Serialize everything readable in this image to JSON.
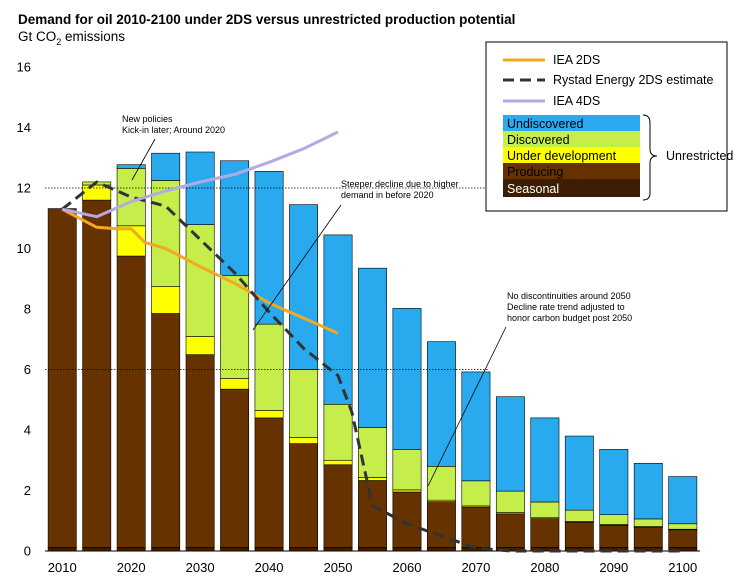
{
  "chart_data": {
    "type": "bar",
    "title": "Demand for oil 2010-2100 under 2DS  versus unrestricted production potential",
    "ylabel_prefix": "Gt CO",
    "ylabel_sub": "2",
    "ylabel_suffix": " emissions",
    "ylim": [
      0,
      16
    ],
    "yticks": [
      "0",
      "2",
      "4",
      "6",
      "8",
      "10",
      "12",
      "14",
      "16"
    ],
    "xlim": [
      2007.5,
      2102.5
    ],
    "xticks": [
      "2010",
      "2020",
      "2030",
      "2040",
      "2050",
      "2060",
      "2070",
      "2080",
      "2090",
      "2100"
    ],
    "grid": false,
    "years": [
      2010,
      2015,
      2020,
      2025,
      2030,
      2035,
      2040,
      2045,
      2050,
      2055,
      2060,
      2065,
      2070,
      2075,
      2080,
      2085,
      2090,
      2095,
      2100
    ],
    "stack_order": [
      "seasonal",
      "producing",
      "under_development",
      "discovered",
      "undiscovered"
    ],
    "stacks": [
      {
        "name": "Seasonal",
        "color": "#3D1E05",
        "values": [
          0.12,
          0.12,
          0.12,
          0.12,
          0.12,
          0.12,
          0.12,
          0.12,
          0.12,
          0.12,
          0.12,
          0.12,
          0.12,
          0.12,
          0.12,
          0.12,
          0.12,
          0.12,
          0.12
        ]
      },
      {
        "name": "Producing",
        "color": "#663300",
        "values": [
          11.2,
          11.48,
          9.63,
          7.73,
          6.37,
          5.23,
          4.28,
          3.43,
          2.73,
          2.21,
          1.83,
          1.51,
          1.33,
          1.11,
          0.95,
          0.83,
          0.73,
          0.66,
          0.58
        ]
      },
      {
        "name": "Under development",
        "color": "#FFFF00",
        "values": [
          0,
          0.5,
          1.0,
          0.9,
          0.6,
          0.35,
          0.25,
          0.2,
          0.15,
          0.1,
          0.07,
          0.05,
          0.04,
          0.04,
          0.03,
          0.03,
          0.03,
          0.03,
          0.02
        ]
      },
      {
        "name": "Discovered",
        "color": "#C6EE4A",
        "values": [
          0,
          0.1,
          1.9,
          3.5,
          3.7,
          3.4,
          2.85,
          2.25,
          1.85,
          1.65,
          1.33,
          1.12,
          0.83,
          0.71,
          0.52,
          0.37,
          0.32,
          0.25,
          0.18
        ]
      },
      {
        "name": "Undiscovered",
        "color": "#29AAEF",
        "values": [
          0,
          0,
          0.12,
          0.9,
          2.4,
          3.8,
          5.05,
          5.45,
          5.6,
          5.27,
          4.67,
          4.12,
          3.6,
          3.12,
          2.78,
          2.45,
          2.16,
          1.84,
          1.56
        ]
      }
    ],
    "lines": [
      {
        "name": "IEA 2DS",
        "color": "#F5A623",
        "dash": "solid",
        "x": [
          2010,
          2015,
          2018,
          2020,
          2022,
          2025,
          2030,
          2035,
          2040,
          2045,
          2050
        ],
        "y": [
          11.3,
          10.7,
          10.65,
          10.65,
          10.2,
          10.0,
          9.4,
          8.85,
          8.2,
          7.7,
          7.2
        ]
      },
      {
        "name": "Rystad Energy 2DS estimate",
        "color": "#333333",
        "dash": "dashed",
        "x": [
          2010,
          2015,
          2020,
          2025,
          2030,
          2035,
          2040,
          2045,
          2050,
          2052,
          2055,
          2060,
          2065,
          2070,
          2075,
          2080,
          2085,
          2090,
          2095,
          2100
        ],
        "y": [
          11.3,
          12.2,
          11.7,
          11.4,
          10.3,
          9.2,
          7.9,
          6.7,
          5.8,
          4.6,
          1.5,
          0.9,
          0.5,
          0.1,
          0.0,
          0.0,
          0.0,
          0.0,
          0.0,
          0.0
        ]
      },
      {
        "name": "IEA 4DS",
        "color": "#B3A9E3",
        "dash": "solid",
        "x": [
          2010,
          2015,
          2020,
          2025,
          2030,
          2035,
          2040,
          2045,
          2050
        ],
        "y": [
          11.3,
          11.05,
          11.55,
          11.9,
          12.2,
          12.45,
          12.85,
          13.3,
          13.85
        ]
      }
    ],
    "ref_lines": [
      12.0,
      6.0
    ],
    "annotations": [
      {
        "line1": "New policies",
        "line2": "Kick-in later; Around 2020"
      },
      {
        "line1": "Steeper decline due to higher",
        "line2": "demand in before 2020"
      },
      {
        "line1": "No discontinuities around 2050",
        "line2": "Decline rate trend adjusted to",
        "line3": "honor carbon budget post 2050"
      }
    ],
    "legend": {
      "position": "top-right",
      "lines": [
        "IEA 2DS",
        "Rystad Energy 2DS estimate",
        "IEA 4DS"
      ],
      "boxes": [
        "Undiscovered",
        "Discovered",
        "Under development",
        "Producing",
        "Seasonal"
      ],
      "bracket_label": "Unrestricted"
    }
  }
}
